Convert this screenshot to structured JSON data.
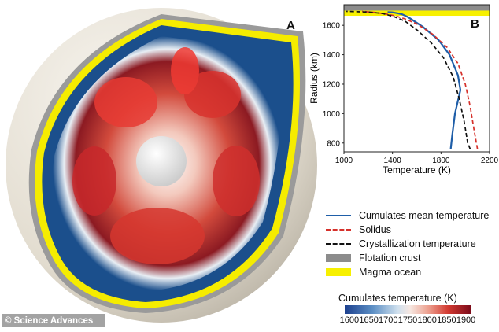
{
  "panel_a": {
    "label": "A"
  },
  "panel_b": {
    "label": "B"
  },
  "credit": "© Science Advances",
  "colors": {
    "cumulates_mean": "#1f5ea8",
    "solidus": "#d6312b",
    "crystallization": "#111111",
    "flotation_crust": "#8c8c8c",
    "magma_ocean": "#f7f000"
  },
  "chart_data": {
    "type": "line",
    "xlabel": "Temperature (K)",
    "ylabel": "Radius (km)",
    "xlim": [
      1000,
      2200
    ],
    "ylim": [
      740,
      1740
    ],
    "xticks": [
      "1000",
      "1400",
      "1800",
      "2200"
    ],
    "yticks": [
      "800",
      "1000",
      "1200",
      "1400",
      "1600"
    ],
    "grid": false,
    "series": [
      {
        "name": "Cumulates mean temperature",
        "style": "solid",
        "color": "#1f5ea8",
        "x": [
          1880,
          1892,
          1915,
          1960,
          1940,
          1870,
          1780,
          1650,
          1530,
          1480,
          1440,
          1400,
          1360
        ],
        "y": [
          760,
          850,
          1000,
          1160,
          1260,
          1400,
          1500,
          1590,
          1655,
          1675,
          1682,
          1688,
          1690
        ]
      },
      {
        "name": "Solidus",
        "style": "dashed",
        "color": "#d6312b",
        "x": [
          2100,
          2070,
          2040,
          2000,
          1940,
          1850,
          1730,
          1600,
          1500,
          1420,
          1340,
          1250,
          1150
        ],
        "y": [
          760,
          900,
          1050,
          1200,
          1340,
          1450,
          1540,
          1610,
          1645,
          1665,
          1678,
          1688,
          1695
        ]
      },
      {
        "name": "Crystallization temperature",
        "style": "dashed",
        "color": "#111111",
        "x": [
          2040,
          2020,
          1990,
          1950,
          1900,
          1820,
          1720,
          1600,
          1500,
          1410,
          1320,
          1210,
          1020
        ],
        "y": [
          760,
          800,
          950,
          1100,
          1250,
          1380,
          1480,
          1570,
          1630,
          1660,
          1680,
          1690,
          1695
        ]
      }
    ],
    "bands": [
      {
        "name": "Flotation crust",
        "color": "#8c8c8c",
        "y": [
          1700,
          1740
        ]
      },
      {
        "name": "Magma ocean",
        "color": "#f7f000",
        "y": [
          1665,
          1700
        ]
      }
    ],
    "colorbar": {
      "title": "Cumulates temperature (K)",
      "ticks": [
        1600,
        1650,
        1700,
        1750,
        1800,
        1850,
        1900
      ],
      "tick_labels": [
        "1600",
        "1650",
        "1700",
        "1750",
        "1800",
        "1850",
        "1900"
      ]
    }
  }
}
